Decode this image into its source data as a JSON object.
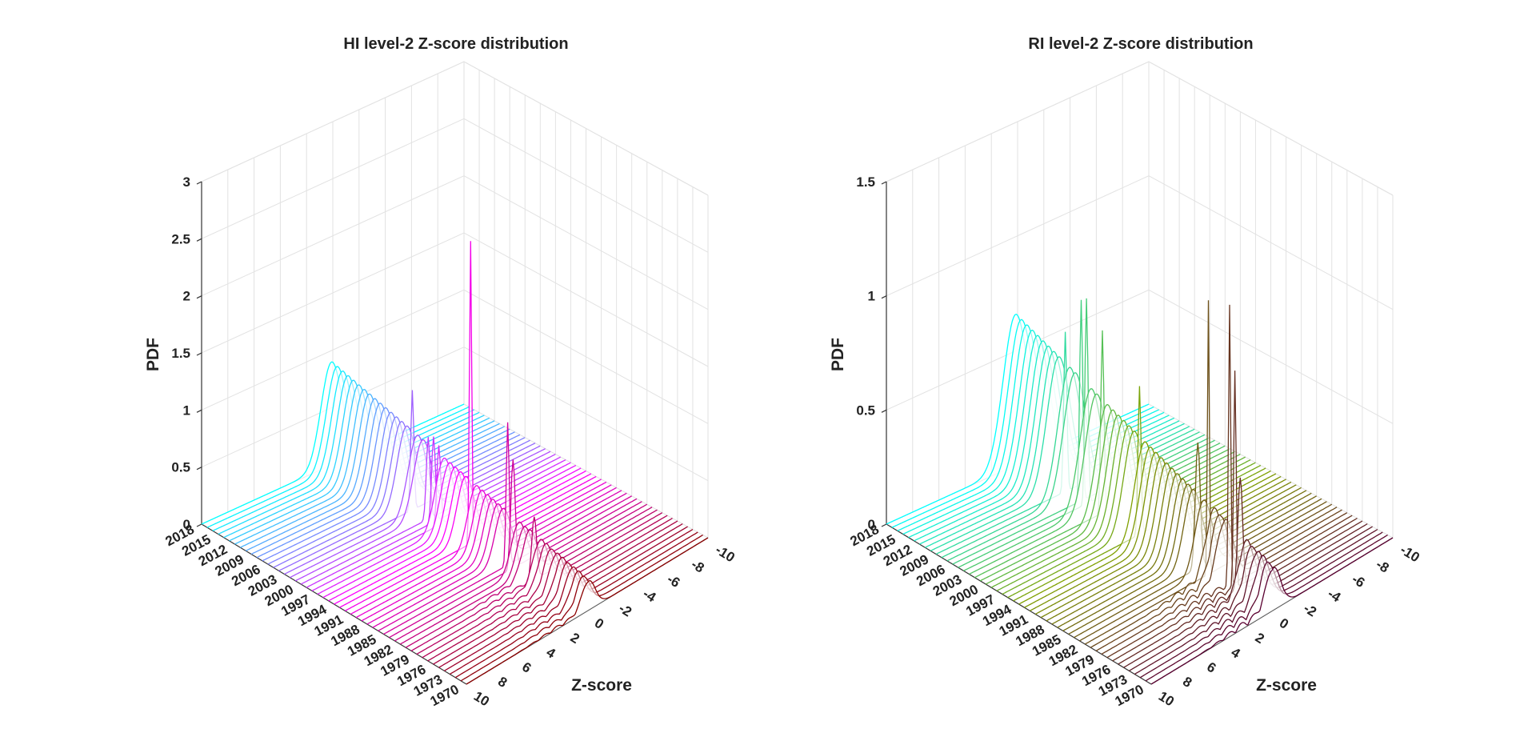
{
  "charts": [
    {
      "title": "HI level-2 Z-score distribution",
      "xlabel": "Z-score",
      "zlabel": "PDF",
      "zticks": [
        "0",
        "0.5",
        "1",
        "1.5",
        "2",
        "2.5",
        "3"
      ],
      "xticks": [
        "-10",
        "-8",
        "-6",
        "-4",
        "-2",
        "0",
        "2",
        "4",
        "6",
        "8",
        "10"
      ],
      "yticks": [
        "1970",
        "1973",
        "1976",
        "1979",
        "1982",
        "1985",
        "1988",
        "1991",
        "1994",
        "1997",
        "2000",
        "2003",
        "2006",
        "2009",
        "2012",
        "2015",
        "2018"
      ]
    },
    {
      "title": "RI level-2 Z-score distribution",
      "xlabel": "Z-score",
      "zlabel": "PDF",
      "zticks": [
        "0",
        "0.5",
        "1",
        "1.5"
      ],
      "xticks": [
        "-10",
        "-8",
        "-6",
        "-4",
        "-2",
        "0",
        "2",
        "4",
        "6",
        "8",
        "10"
      ],
      "yticks": [
        "1970",
        "1973",
        "1976",
        "1979",
        "1982",
        "1985",
        "1988",
        "1991",
        "1994",
        "1997",
        "2000",
        "2003",
        "2006",
        "2009",
        "2012",
        "2015",
        "2018"
      ]
    }
  ],
  "chart_data": [
    {
      "type": "line",
      "title": "HI level-2 Z-score distribution",
      "xlabel": "Z-score",
      "ylabel": "",
      "zlabel": "PDF",
      "xlim": [
        -10,
        10
      ],
      "ylim": [
        1970,
        2018
      ],
      "zlim": [
        0,
        3
      ],
      "grid": true,
      "colormap": [
        "#00ffff",
        "#ff00ff",
        "#8b0000"
      ],
      "years": [
        1970,
        1971,
        1972,
        1973,
        1974,
        1975,
        1976,
        1977,
        1978,
        1979,
        1980,
        1981,
        1982,
        1983,
        1984,
        1985,
        1986,
        1987,
        1988,
        1989,
        1990,
        1991,
        1992,
        1993,
        1994,
        1995,
        1996,
        1997,
        1998,
        1999,
        2000,
        2001,
        2002,
        2003,
        2004,
        2005,
        2006,
        2007,
        2008,
        2009,
        2010,
        2011,
        2012,
        2013,
        2014,
        2015,
        2016,
        2017,
        2018
      ],
      "series_summary": [
        {
          "year": 2018,
          "peak_z": 0.2,
          "peak_pdf": 0.85
        },
        {
          "year": 2005,
          "peak_z": 0.0,
          "peak_pdf": 1.1
        },
        {
          "year": 2000,
          "peak_z": 0.0,
          "peak_pdf": 0.8
        },
        {
          "year": 1992,
          "peak_z": 0.0,
          "peak_pdf": 2.65
        },
        {
          "year": 1985,
          "peak_z": 0.0,
          "peak_pdf": 1.25
        },
        {
          "year": 1980,
          "peak_z": 0.0,
          "peak_pdf": 0.65
        },
        {
          "year": 1970,
          "peak_z": 0.0,
          "peak_pdf": 0.2
        }
      ]
    },
    {
      "type": "line",
      "title": "RI level-2 Z-score distribution",
      "xlabel": "Z-score",
      "ylabel": "",
      "zlabel": "PDF",
      "xlim": [
        -10,
        10
      ],
      "ylim": [
        1970,
        2018
      ],
      "zlim": [
        0,
        1.5
      ],
      "grid": true,
      "colormap": [
        "#00ffff",
        "#80a000",
        "#5a0030"
      ],
      "years": [
        1970,
        1971,
        1972,
        1973,
        1974,
        1975,
        1976,
        1977,
        1978,
        1979,
        1980,
        1981,
        1982,
        1983,
        1984,
        1985,
        1986,
        1987,
        1988,
        1989,
        1990,
        1991,
        1992,
        1993,
        1994,
        1995,
        1996,
        1997,
        1998,
        1999,
        2000,
        2001,
        2002,
        2003,
        2004,
        2005,
        2006,
        2007,
        2008,
        2009,
        2010,
        2011,
        2012,
        2013,
        2014,
        2015,
        2016,
        2017,
        2018
      ],
      "series_summary": [
        {
          "year": 2018,
          "peak_z": 0.2,
          "peak_pdf": 0.6
        },
        {
          "year": 2005,
          "peak_z": 0.0,
          "peak_pdf": 0.9
        },
        {
          "year": 2000,
          "peak_z": 0.0,
          "peak_pdf": 0.8
        },
        {
          "year": 1995,
          "peak_z": 0.0,
          "peak_pdf": 0.55
        },
        {
          "year": 1985,
          "peak_z": 0.0,
          "peak_pdf": 1.2
        },
        {
          "year": 1982,
          "peak_z": 0.0,
          "peak_pdf": 1.15
        },
        {
          "year": 1978,
          "peak_z": 0.0,
          "peak_pdf": 0.95
        }
      ]
    }
  ]
}
